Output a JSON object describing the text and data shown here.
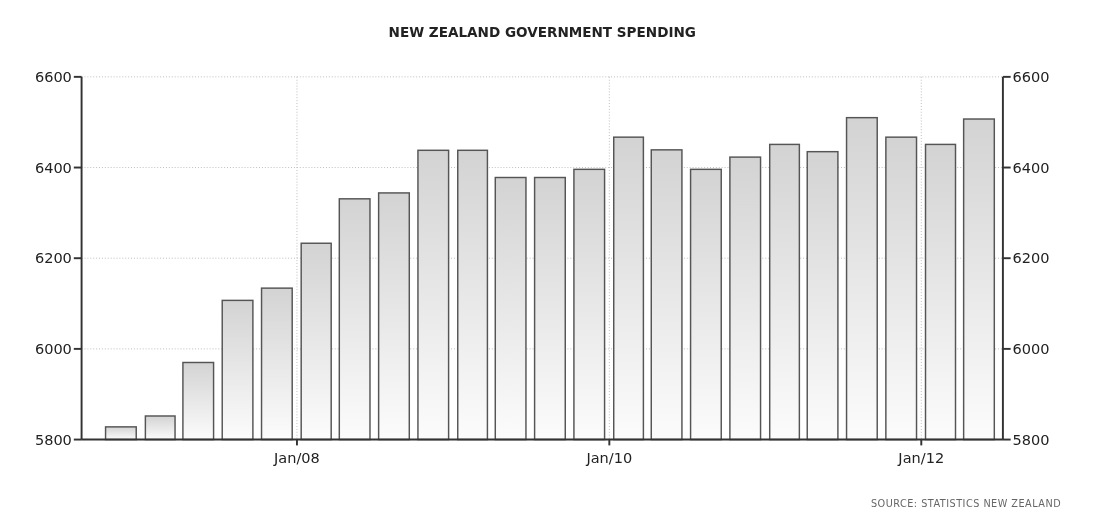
{
  "chart_data": {
    "type": "bar",
    "title": "NEW ZEALAND GOVERNMENT SPENDING",
    "x": [
      "2006-11-15",
      "2007-02-15",
      "2007-05-15",
      "2007-08-15",
      "2007-11-15",
      "2008-02-15",
      "2008-05-15",
      "2008-08-15",
      "2008-11-15",
      "2009-02-15",
      "2009-05-15",
      "2009-08-15",
      "2009-11-15",
      "2010-02-15",
      "2010-05-15",
      "2010-08-15",
      "2010-11-15",
      "2011-02-15",
      "2011-05-15",
      "2011-08-15",
      "2011-11-15",
      "2012-02-15",
      "2012-05-15"
    ],
    "values": [
      5828,
      5852,
      5970,
      6107,
      6134,
      6233,
      6331,
      6344,
      6438,
      6438,
      6378,
      6378,
      6396,
      6467,
      6439,
      6396,
      6423,
      6451,
      6435,
      6510,
      6467,
      6451,
      6507
    ],
    "color": "#555555",
    "xlim": [
      "2006-08-15",
      "2012-07-10"
    ],
    "xticks": [
      {
        "value": "2008-01",
        "label": "Jan/08"
      },
      {
        "value": "2010-01",
        "label": "Jan/10"
      },
      {
        "value": "2012-01",
        "label": "Jan/12"
      }
    ],
    "ylim": [
      5800,
      6600
    ],
    "yticks": [
      5800,
      6000,
      6200,
      6400,
      6600
    ],
    "y2lim": [
      5800,
      6600
    ],
    "y2ticks": [
      5800,
      6000,
      6200,
      6400,
      6600
    ],
    "grid": true,
    "annotations": [
      "SOURCE: STATISTICS NEW ZEALAND"
    ]
  }
}
